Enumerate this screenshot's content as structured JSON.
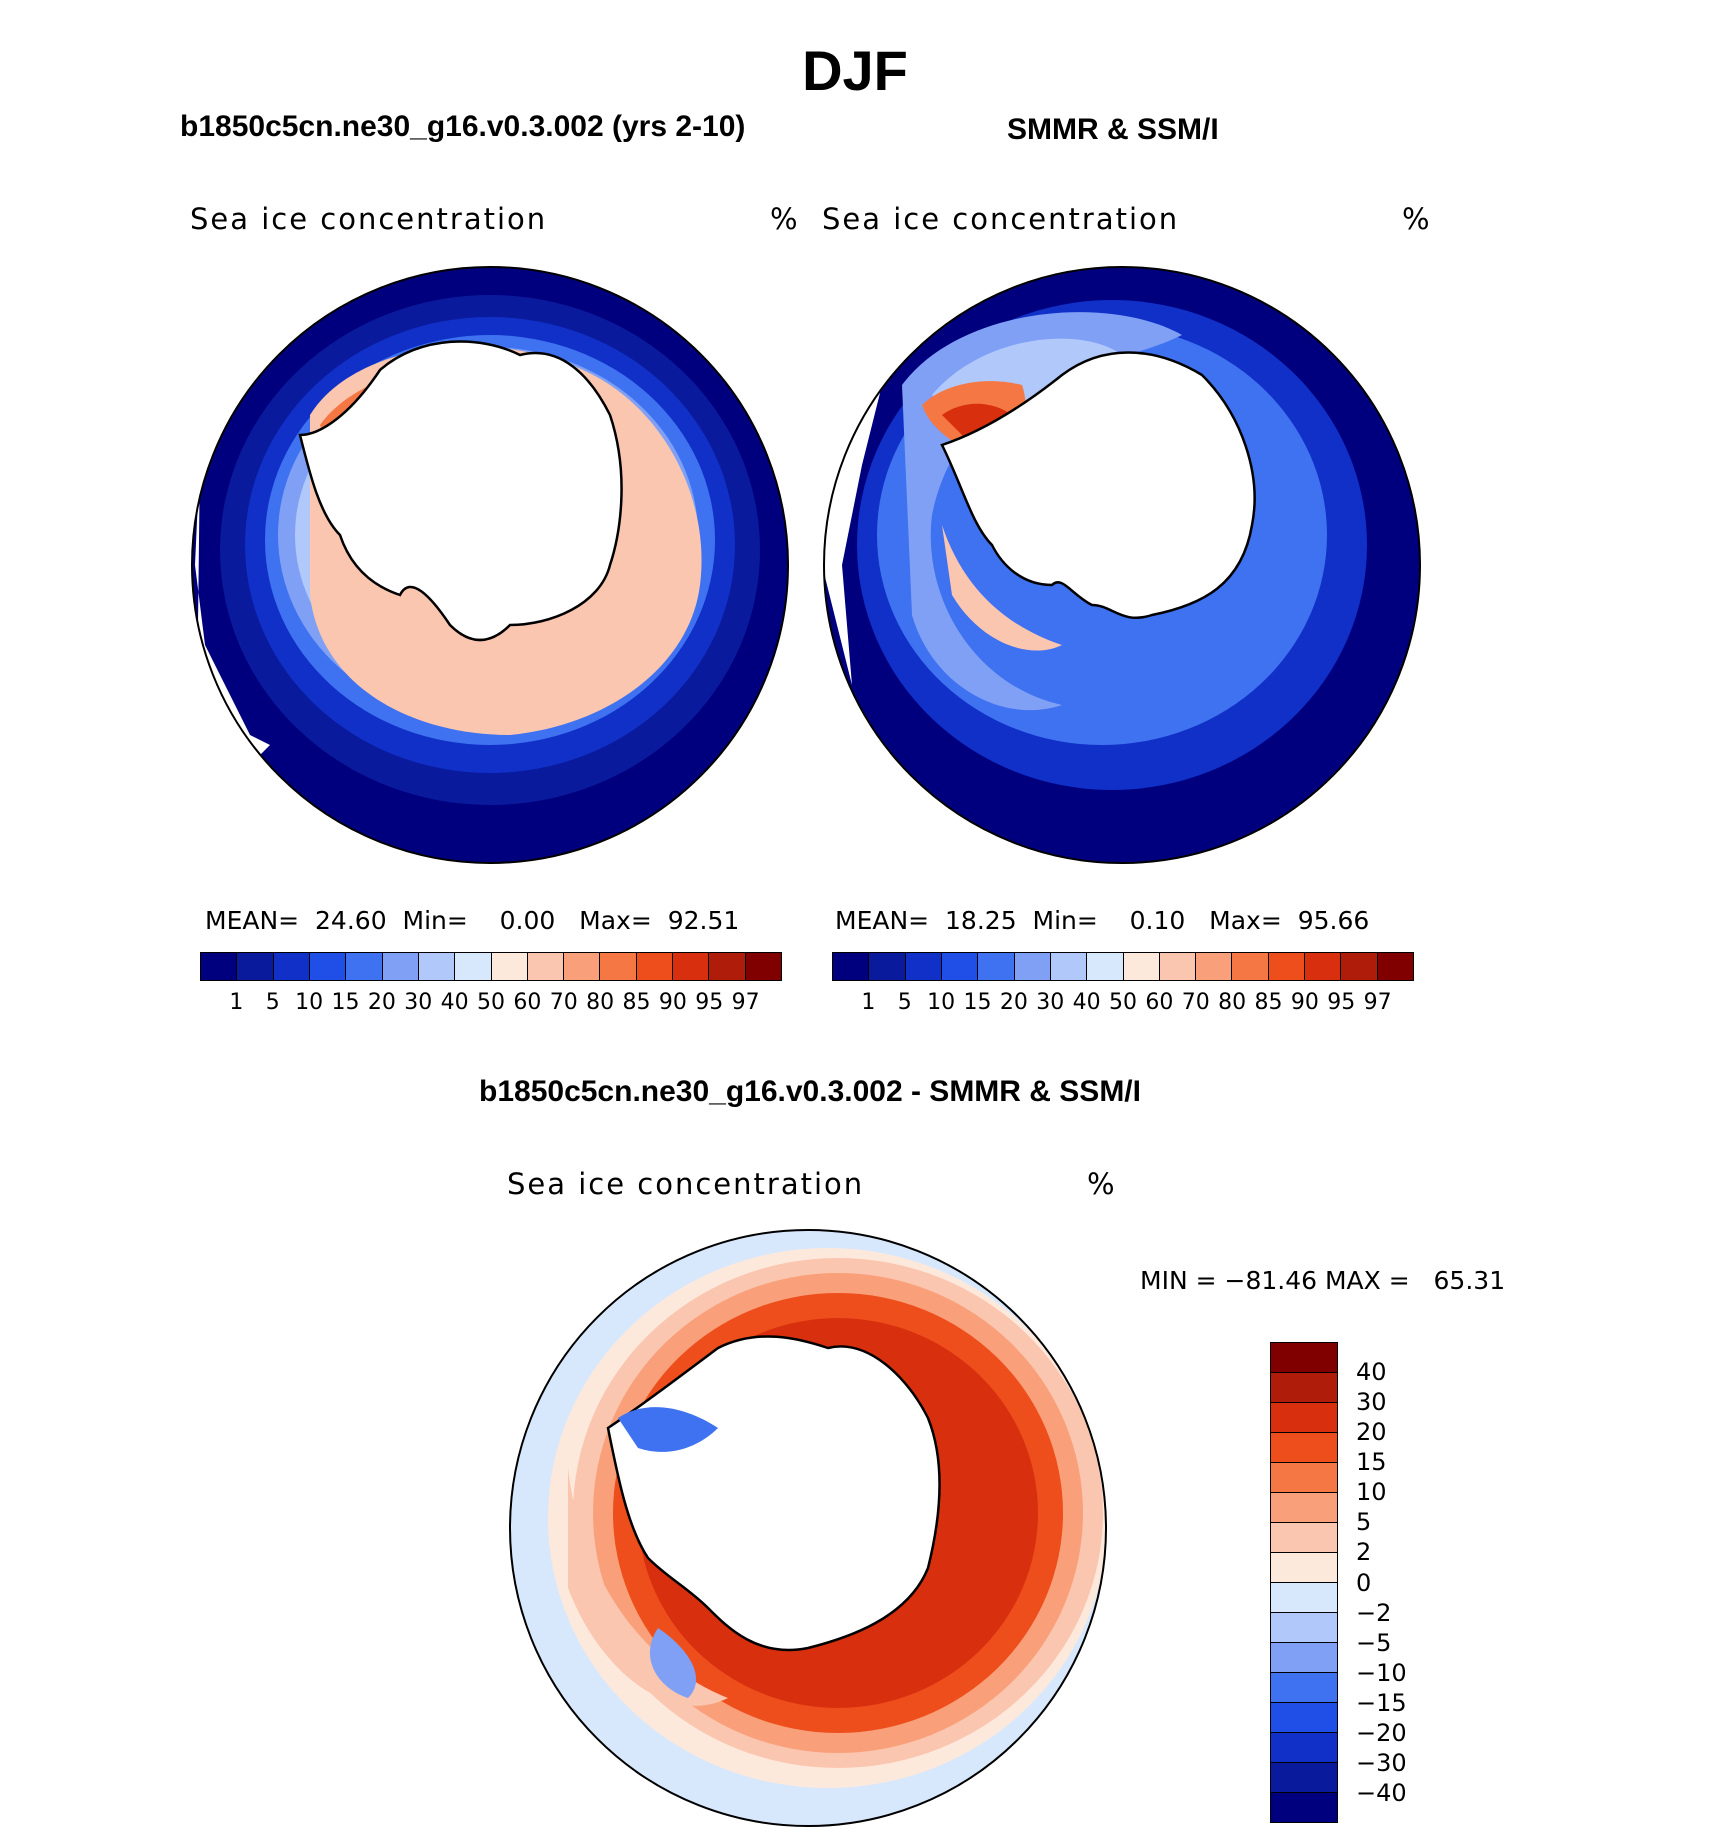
{
  "title": "DJF",
  "panels": [
    {
      "title": "b1850c5cn.ne30_g16.v0.3.002 (yrs 2-10)",
      "variable": "Sea ice concentration",
      "unit": "%",
      "stats": {
        "mean_label": "MEAN=",
        "mean": "24.60",
        "min_label": "Min=",
        "min": "0.00",
        "max_label": "Max=",
        "max": "92.51"
      }
    },
    {
      "title": "SMMR & SSM/I",
      "variable": "Sea ice concentration",
      "unit": "%",
      "stats": {
        "mean_label": "MEAN=",
        "mean": "18.25",
        "min_label": "Min=",
        "min": "0.10",
        "max_label": "Max=",
        "max": "95.66"
      }
    },
    {
      "title": "b1850c5cn.ne30_g16.v0.3.002 - SMMR & SSM/I",
      "variable": "Sea ice concentration",
      "unit": "%",
      "stats": {
        "min_label": "MIN =",
        "min": "−81.46",
        "max_label": "MAX =",
        "max": "65.31"
      }
    }
  ],
  "colorbars": {
    "concentration": {
      "ticks": [
        "1",
        "5",
        "10",
        "15",
        "20",
        "30",
        "40",
        "50",
        "60",
        "70",
        "80",
        "85",
        "90",
        "95",
        "97"
      ],
      "colors": [
        "#00007f",
        "#0a1a9c",
        "#1030c8",
        "#1f4fe6",
        "#3f72f0",
        "#7fa0f5",
        "#b0c8fa",
        "#d8e8fc",
        "#fde9dc",
        "#fbc6b0",
        "#f9a07a",
        "#f57844",
        "#ee4e1c",
        "#d8300e",
        "#b01c0a",
        "#800000"
      ]
    },
    "difference": {
      "ticks": [
        "40",
        "30",
        "20",
        "15",
        "10",
        "5",
        "2",
        "0",
        "−2",
        "−5",
        "−10",
        "−15",
        "−20",
        "−30",
        "−40"
      ],
      "colors": [
        "#800000",
        "#b01c0a",
        "#d8300e",
        "#ee4e1c",
        "#f57844",
        "#f9a07a",
        "#fbc6b0",
        "#fde9dc",
        "#d8e8fc",
        "#b0c8fa",
        "#7fa0f5",
        "#3f72f0",
        "#1f4fe6",
        "#1030c8",
        "#0a1a9c",
        "#00007f"
      ]
    }
  }
}
